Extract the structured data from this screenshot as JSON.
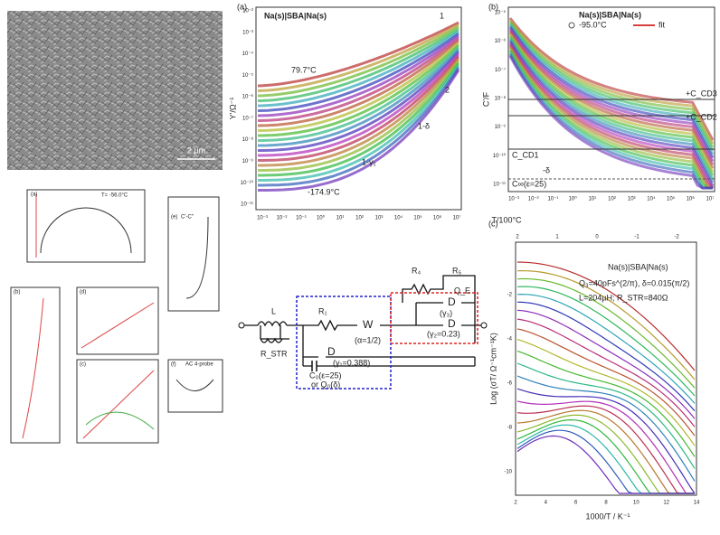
{
  "sem_image": {
    "scale_bar": "2 µm"
  },
  "panel_a": {
    "label": "(a)",
    "y_label": "Y'/Ω⁻¹",
    "legend": "Na(s)|SBA|Na(s)",
    "annotations": [
      "79.7°C",
      "-174.9°C",
      "1",
      "2",
      "1-δ",
      "1-γ₁"
    ],
    "x_ticks": [
      "10⁻³",
      "10⁻²",
      "10⁻¹",
      "10⁰",
      "10¹",
      "10²",
      "10³",
      "10⁴",
      "10⁵",
      "10⁶",
      "10⁷"
    ],
    "y_ticks": [
      "10⁻²",
      "10⁻³",
      "10⁻⁴",
      "10⁻⁵",
      "10⁻⁶",
      "10⁻⁷",
      "10⁻⁸",
      "10⁻⁹",
      "10⁻¹⁰",
      "10⁻¹¹"
    ]
  },
  "panel_b": {
    "label": "(b)",
    "y_label": "C'/F",
    "legend": "Na(s)|SBA|Na(s)",
    "temperature": "-95.0°C",
    "fit": "fit",
    "annotations": [
      "+C_CD3",
      "+C_CD2",
      "C_CD1",
      "-δ",
      "C∞(ε=25)"
    ],
    "x_label": "T/100°C",
    "x_ticks": [
      "10⁻³",
      "10⁻²",
      "10⁻¹",
      "10⁰",
      "10¹",
      "10²",
      "10³",
      "10⁴",
      "10⁵",
      "10⁶",
      "10⁷"
    ],
    "y_ticks": [
      "10⁻⁵",
      "10⁻⁶",
      "10⁻⁷",
      "10⁻⁸",
      "10⁻⁹",
      "10⁻¹⁰",
      "10⁻¹¹"
    ]
  },
  "panel_c": {
    "label": "(c)",
    "legend": "Na(s)|SBA|Na(s)",
    "params": [
      "Q₃=40pFs^(2/π), δ=0.015(π/2)",
      "L=204µH; R_STR=840Ω"
    ],
    "x_label": "1000/T / K⁻¹",
    "y_label": "Log (σT/ Ω⁻¹cm⁻¹K)",
    "x_ticks": [
      "2",
      "4",
      "6",
      "8",
      "10",
      "12",
      "14"
    ],
    "y_ticks": [
      "-2",
      "-4",
      "-6",
      "-8",
      "-10"
    ],
    "top_ticks": [
      "2",
      "1",
      "0",
      "-1",
      "-2"
    ]
  },
  "circuit": {
    "labels": [
      "L",
      "R_STR",
      "R₁",
      "W",
      "(α=1/2)",
      "R₄",
      "R₅",
      "Q_E",
      "D",
      "(γ₃)",
      "D",
      "(γ₂=0.23)",
      "D",
      "(γ₁=0.388)",
      "C₀(ε=25)",
      "or Q₀(δ)"
    ]
  },
  "insets": {
    "labels": [
      "(a)",
      "T= -56.0°C",
      "(b)",
      "(c)",
      "(d)",
      "(e)",
      "C'-C''",
      "(f)",
      "AC 4-probe"
    ]
  }
}
